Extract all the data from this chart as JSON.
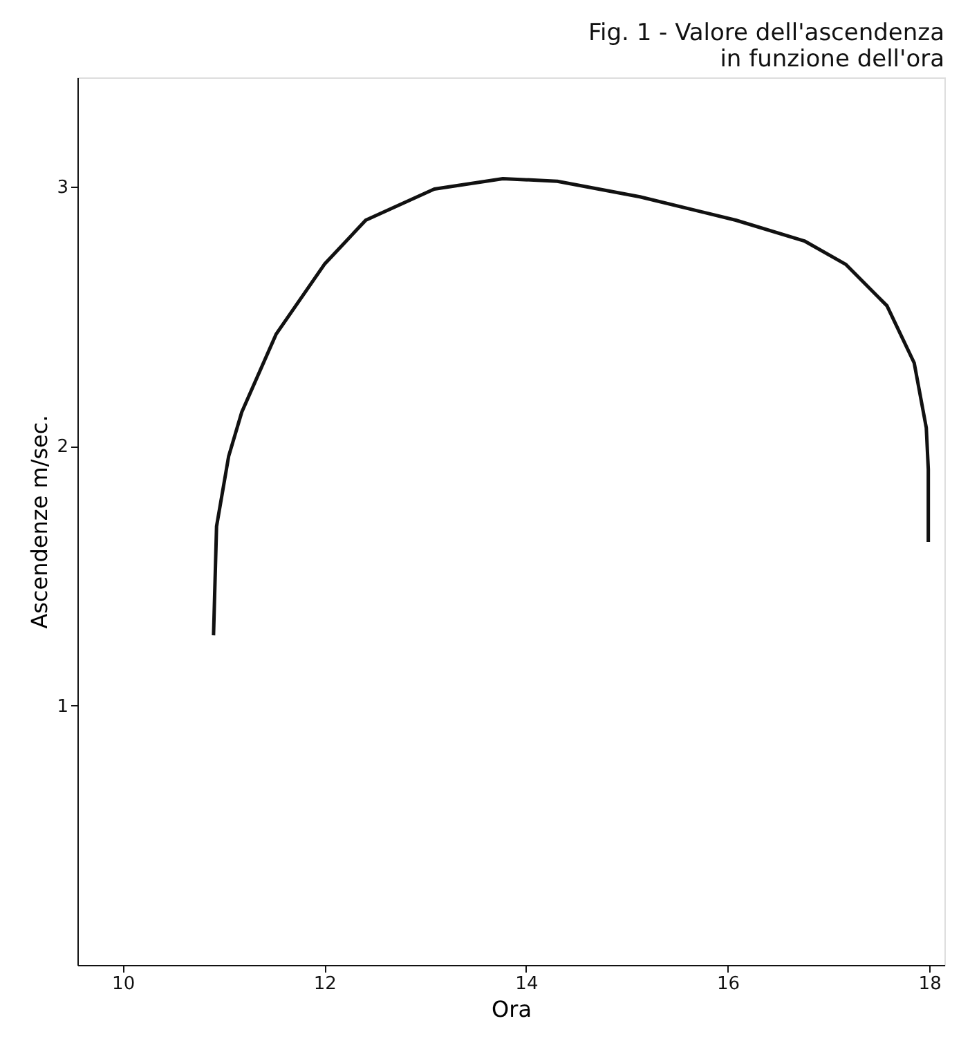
{
  "chart_data": {
    "type": "line",
    "title": "Fig. 1 - Valore dell'ascendenza\nin funzione dell'ora",
    "xlabel": "Ora",
    "ylabel": "Ascendenze m/sec.",
    "x": [
      10.9,
      10.93,
      11.05,
      11.18,
      11.52,
      12.0,
      12.41,
      13.09,
      13.77,
      14.31,
      15.13,
      16.08,
      16.76,
      17.17,
      17.58,
      17.85,
      17.97,
      17.99,
      17.99
    ],
    "series": [
      {
        "color": "#111111",
        "values": [
          1.27,
          1.69,
          1.96,
          2.13,
          2.43,
          2.7,
          2.87,
          2.99,
          3.03,
          3.02,
          2.96,
          2.87,
          2.79,
          2.7,
          2.54,
          2.32,
          2.07,
          1.91,
          1.63
        ]
      }
    ],
    "xlim": [
      9.55,
      18.15
    ],
    "ylim": [
      0,
      3.42
    ],
    "xticks": [
      10,
      12,
      14,
      16,
      18
    ],
    "yticks": [
      1,
      2,
      3
    ],
    "grid": false,
    "line_style": "solid",
    "marker": "none"
  }
}
